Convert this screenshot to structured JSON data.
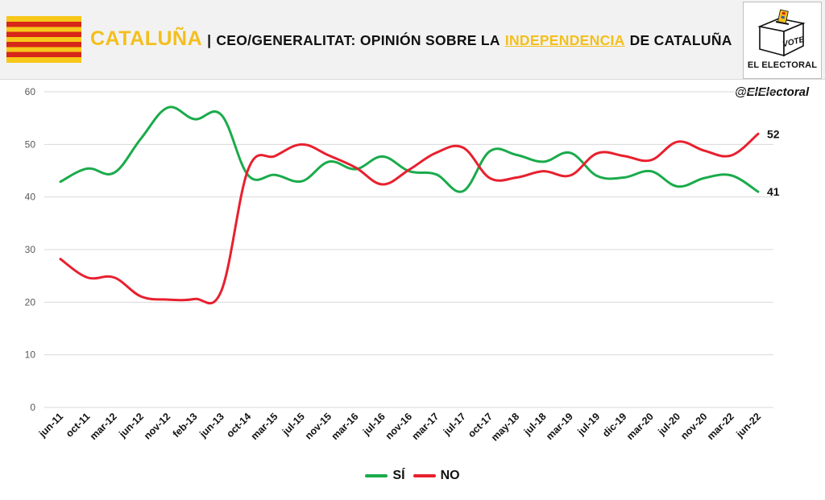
{
  "header": {
    "region": "CATALUÑA",
    "separator": "|",
    "title_prefix": "CEO/GENERALITAT: OPINIÓN SOBRE LA",
    "title_highlight": "INDEPENDENCIA",
    "title_suffix": "DE CATALUÑA",
    "logo_vote": "VOTE",
    "logo_brand": "EL ELECTORAL",
    "handle": "@ElElectoral"
  },
  "colors": {
    "accent": "#f4bf1d",
    "si": "#1aab4b",
    "no": "#e8202e",
    "flag_red": "#d62718",
    "flag_yellow": "#f7c71a"
  },
  "icons": [
    "catalan-flag-icon",
    "ballot-box-icon"
  ],
  "chart_data": {
    "type": "line",
    "title": "CEO/GENERALITAT: OPINIÓN SOBRE LA INDEPENDENCIA DE CATALUÑA",
    "xlabel": "",
    "ylabel": "",
    "ylim": [
      0,
      60
    ],
    "yticks": [
      0,
      10,
      20,
      30,
      40,
      50,
      60
    ],
    "grid": true,
    "legend": "bottom-center",
    "x": [
      "jun-11",
      "oct-11",
      "mar-12",
      "jun-12",
      "nov-12",
      "feb-13",
      "jun-13",
      "oct-14",
      "mar-15",
      "jul-15",
      "nov-15",
      "mar-16",
      "jul-16",
      "nov-16",
      "mar-17",
      "jul-17",
      "oct-17",
      "may-18",
      "jul-18",
      "mar-19",
      "jul-19",
      "dic-19",
      "mar-20",
      "jul-20",
      "nov-20",
      "mar-22",
      "jun-22"
    ],
    "series": [
      {
        "name": "SÍ",
        "color": "#1aab4b",
        "values": [
          42.9,
          45.4,
          44.6,
          51.1,
          57.0,
          54.8,
          55.6,
          44.1,
          44.2,
          43.0,
          46.7,
          45.3,
          47.7,
          44.9,
          44.3,
          41.1,
          48.7,
          48.0,
          46.7,
          48.4,
          44.0,
          43.7,
          44.9,
          42.0,
          43.6,
          44.1,
          41.0
        ]
      },
      {
        "name": "NO",
        "color": "#e8202e",
        "values": [
          28.2,
          24.7,
          24.7,
          21.1,
          20.5,
          20.6,
          22.2,
          45.3,
          47.8,
          50.0,
          47.9,
          45.6,
          42.4,
          45.2,
          48.4,
          49.4,
          43.6,
          43.7,
          44.9,
          44.1,
          48.3,
          47.8,
          47.0,
          50.5,
          48.8,
          47.9,
          52.0
        ]
      }
    ],
    "end_labels": [
      "41",
      "52"
    ]
  }
}
